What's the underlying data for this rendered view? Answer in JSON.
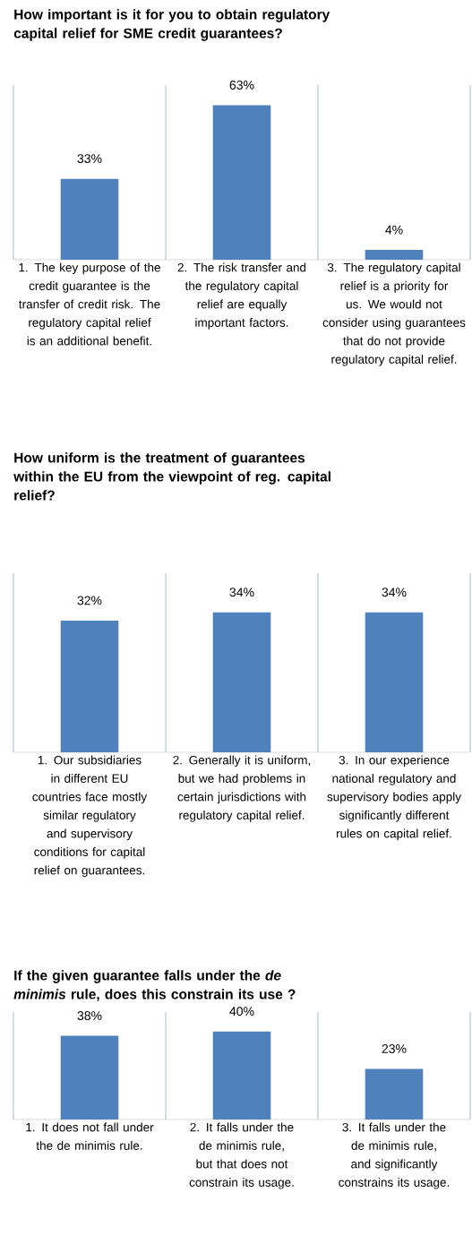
{
  "chart_data": [
    {
      "type": "bar",
      "title": "How important is it for you to obtain regulatory capital relief for SME credit guarantees?",
      "categories": [
        "1. The key purpose of the credit guarantee is the transfer of credit risk. The regulatory capital relief is an additional benefit.",
        "2. The risk transfer and the regulatory capital relief are equally important factors.",
        "3. The regulatory capital relief is a priority for us. We would not consider using guarantees that do not provide regulatory capital relief."
      ],
      "values": [
        33,
        63,
        4
      ],
      "value_labels": [
        "33%",
        "63%",
        "4%"
      ],
      "color": "#4f81bd"
    },
    {
      "type": "bar",
      "title": "How uniform is the treatment of guarantees within the EU from the viewpoint of reg. capital relief?",
      "categories": [
        "1. Our subsidiaries in different EU countries face mostly similar regulatory and supervisory conditions for capital relief on guarantees.",
        "2. Generally it is uniform, but we had problems in certain jurisdictions with regulatory capital relief.",
        "3. In our experience national regulatory and supervisory bodies apply significantly different rules on capital relief."
      ],
      "values": [
        32,
        34,
        34
      ],
      "value_labels": [
        "32%",
        "34%",
        "34%"
      ],
      "color": "#4f81bd"
    },
    {
      "type": "bar",
      "title": "If the given guarantee falls under the *de minimis* rule, does this constrain its use ?",
      "categories": [
        "1. It does not fall under the de minimis rule.",
        "2. It falls under the de minimis rule, but that does not constrain its usage.",
        "3. It falls under the de minimis rule, and significantly constrains its usage."
      ],
      "values": [
        38,
        40,
        23
      ],
      "value_labels": [
        "38%",
        "40%",
        "23%"
      ],
      "color": "#4f81bd"
    }
  ]
}
